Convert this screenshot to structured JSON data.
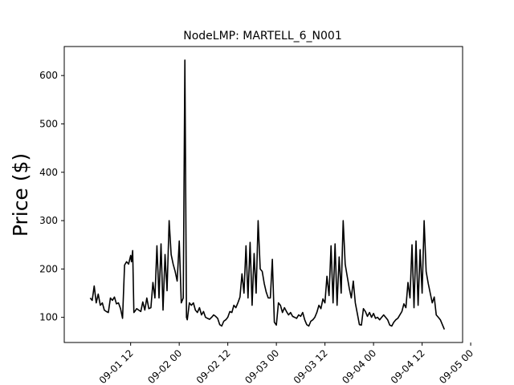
{
  "chart_data": {
    "type": "line",
    "title": "NodeLMP: MARTELL_6_N001",
    "xlabel": "",
    "ylabel": "Price ($)",
    "ylim": [
      48,
      660
    ],
    "y_ticks": [
      100,
      200,
      300,
      400,
      500,
      600
    ],
    "x_ticks": [
      {
        "t": 36,
        "label": "09-01 12"
      },
      {
        "t": 48,
        "label": "09-02 00"
      },
      {
        "t": 60,
        "label": "09-02 12"
      },
      {
        "t": 72,
        "label": "09-03 00"
      },
      {
        "t": 84,
        "label": "09-03 12"
      },
      {
        "t": 96,
        "label": "09-04 00"
      },
      {
        "t": 108,
        "label": "09-04 12"
      },
      {
        "t": 120,
        "label": "09-05 00"
      }
    ],
    "x_axis_unit": "hours from 2023-09-01 00:00",
    "series": [
      {
        "color": "#000000",
        "points": [
          [
            26.0,
            140
          ],
          [
            26.5,
            135
          ],
          [
            27.0,
            165
          ],
          [
            27.5,
            130
          ],
          [
            28.0,
            148
          ],
          [
            28.5,
            125
          ],
          [
            29.0,
            130
          ],
          [
            29.5,
            115
          ],
          [
            30.0,
            112
          ],
          [
            30.5,
            110
          ],
          [
            31.0,
            140
          ],
          [
            31.5,
            135
          ],
          [
            32.0,
            142
          ],
          [
            32.5,
            128
          ],
          [
            33.0,
            130
          ],
          [
            33.5,
            118
          ],
          [
            34.0,
            98
          ],
          [
            34.5,
            208
          ],
          [
            35.0,
            215
          ],
          [
            35.5,
            210
          ],
          [
            36.0,
            228
          ],
          [
            36.2,
            215
          ],
          [
            36.5,
            238
          ],
          [
            36.8,
            110
          ],
          [
            37.0,
            112
          ],
          [
            37.5,
            118
          ],
          [
            38.0,
            115
          ],
          [
            38.5,
            112
          ],
          [
            39.0,
            132
          ],
          [
            39.5,
            115
          ],
          [
            40.0,
            140
          ],
          [
            40.5,
            118
          ],
          [
            41.0,
            120
          ],
          [
            41.5,
            172
          ],
          [
            42.0,
            140
          ],
          [
            42.5,
            248
          ],
          [
            43.0,
            140
          ],
          [
            43.5,
            252
          ],
          [
            44.0,
            115
          ],
          [
            44.5,
            230
          ],
          [
            45.0,
            155
          ],
          [
            45.5,
            300
          ],
          [
            46.0,
            230
          ],
          [
            46.5,
            210
          ],
          [
            47.0,
            195
          ],
          [
            47.5,
            175
          ],
          [
            48.0,
            258
          ],
          [
            48.5,
            130
          ],
          [
            49.0,
            140
          ],
          [
            49.4,
            632
          ],
          [
            49.8,
            100
          ],
          [
            50.0,
            95
          ],
          [
            50.5,
            130
          ],
          [
            51.0,
            125
          ],
          [
            51.5,
            130
          ],
          [
            52.0,
            115
          ],
          [
            52.5,
            110
          ],
          [
            53.0,
            120
          ],
          [
            53.5,
            105
          ],
          [
            54.0,
            112
          ],
          [
            54.5,
            100
          ],
          [
            55.0,
            98
          ],
          [
            55.5,
            96
          ],
          [
            56.0,
            100
          ],
          [
            56.5,
            105
          ],
          [
            57.0,
            102
          ],
          [
            57.5,
            98
          ],
          [
            58.0,
            85
          ],
          [
            58.5,
            82
          ],
          [
            59.0,
            92
          ],
          [
            59.5,
            95
          ],
          [
            60.0,
            100
          ],
          [
            60.5,
            112
          ],
          [
            61.0,
            110
          ],
          [
            61.5,
            125
          ],
          [
            62.0,
            120
          ],
          [
            62.5,
            130
          ],
          [
            63.0,
            142
          ],
          [
            63.5,
            190
          ],
          [
            64.0,
            150
          ],
          [
            64.5,
            248
          ],
          [
            65.0,
            140
          ],
          [
            65.5,
            255
          ],
          [
            66.0,
            125
          ],
          [
            66.5,
            232
          ],
          [
            67.0,
            150
          ],
          [
            67.5,
            300
          ],
          [
            68.0,
            200
          ],
          [
            68.5,
            195
          ],
          [
            69.0,
            170
          ],
          [
            69.5,
            152
          ],
          [
            70.0,
            140
          ],
          [
            70.5,
            140
          ],
          [
            71.0,
            220
          ],
          [
            71.5,
            90
          ],
          [
            72.0,
            84
          ],
          [
            72.5,
            130
          ],
          [
            73.0,
            125
          ],
          [
            73.5,
            110
          ],
          [
            74.0,
            120
          ],
          [
            74.5,
            112
          ],
          [
            75.0,
            105
          ],
          [
            75.5,
            110
          ],
          [
            76.0,
            102
          ],
          [
            76.5,
            100
          ],
          [
            77.0,
            98
          ],
          [
            77.5,
            105
          ],
          [
            78.0,
            102
          ],
          [
            78.5,
            110
          ],
          [
            79.0,
            95
          ],
          [
            79.5,
            85
          ],
          [
            80.0,
            82
          ],
          [
            80.5,
            92
          ],
          [
            81.0,
            95
          ],
          [
            81.5,
            100
          ],
          [
            82.0,
            110
          ],
          [
            82.5,
            125
          ],
          [
            83.0,
            118
          ],
          [
            83.5,
            138
          ],
          [
            84.0,
            130
          ],
          [
            84.5,
            185
          ],
          [
            85.0,
            145
          ],
          [
            85.5,
            248
          ],
          [
            86.0,
            130
          ],
          [
            86.5,
            252
          ],
          [
            87.0,
            125
          ],
          [
            87.5,
            225
          ],
          [
            88.0,
            150
          ],
          [
            88.5,
            300
          ],
          [
            89.0,
            210
          ],
          [
            89.5,
            185
          ],
          [
            90.0,
            160
          ],
          [
            90.5,
            140
          ],
          [
            91.0,
            175
          ],
          [
            91.5,
            130
          ],
          [
            92.0,
            108
          ],
          [
            92.5,
            85
          ],
          [
            93.0,
            84
          ],
          [
            93.5,
            118
          ],
          [
            94.0,
            112
          ],
          [
            94.5,
            102
          ],
          [
            95.0,
            110
          ],
          [
            95.5,
            100
          ],
          [
            96.0,
            108
          ],
          [
            96.5,
            98
          ],
          [
            97.0,
            100
          ],
          [
            97.5,
            95
          ],
          [
            98.0,
            100
          ],
          [
            98.5,
            105
          ],
          [
            99.0,
            100
          ],
          [
            99.5,
            95
          ],
          [
            100.0,
            84
          ],
          [
            100.5,
            82
          ],
          [
            101.0,
            90
          ],
          [
            101.5,
            95
          ],
          [
            102.0,
            98
          ],
          [
            102.5,
            105
          ],
          [
            103.0,
            112
          ],
          [
            103.5,
            128
          ],
          [
            104.0,
            120
          ],
          [
            104.5,
            172
          ],
          [
            105.0,
            140
          ],
          [
            105.5,
            250
          ],
          [
            106.0,
            120
          ],
          [
            106.5,
            258
          ],
          [
            107.0,
            125
          ],
          [
            107.5,
            240
          ],
          [
            108.0,
            150
          ],
          [
            108.5,
            300
          ],
          [
            109.0,
            195
          ],
          [
            109.5,
            170
          ],
          [
            110.0,
            150
          ],
          [
            110.5,
            130
          ],
          [
            111.0,
            142
          ],
          [
            111.5,
            105
          ],
          [
            112.0,
            100
          ],
          [
            112.5,
            95
          ],
          [
            113.0,
            85
          ],
          [
            113.5,
            75
          ]
        ]
      }
    ]
  }
}
